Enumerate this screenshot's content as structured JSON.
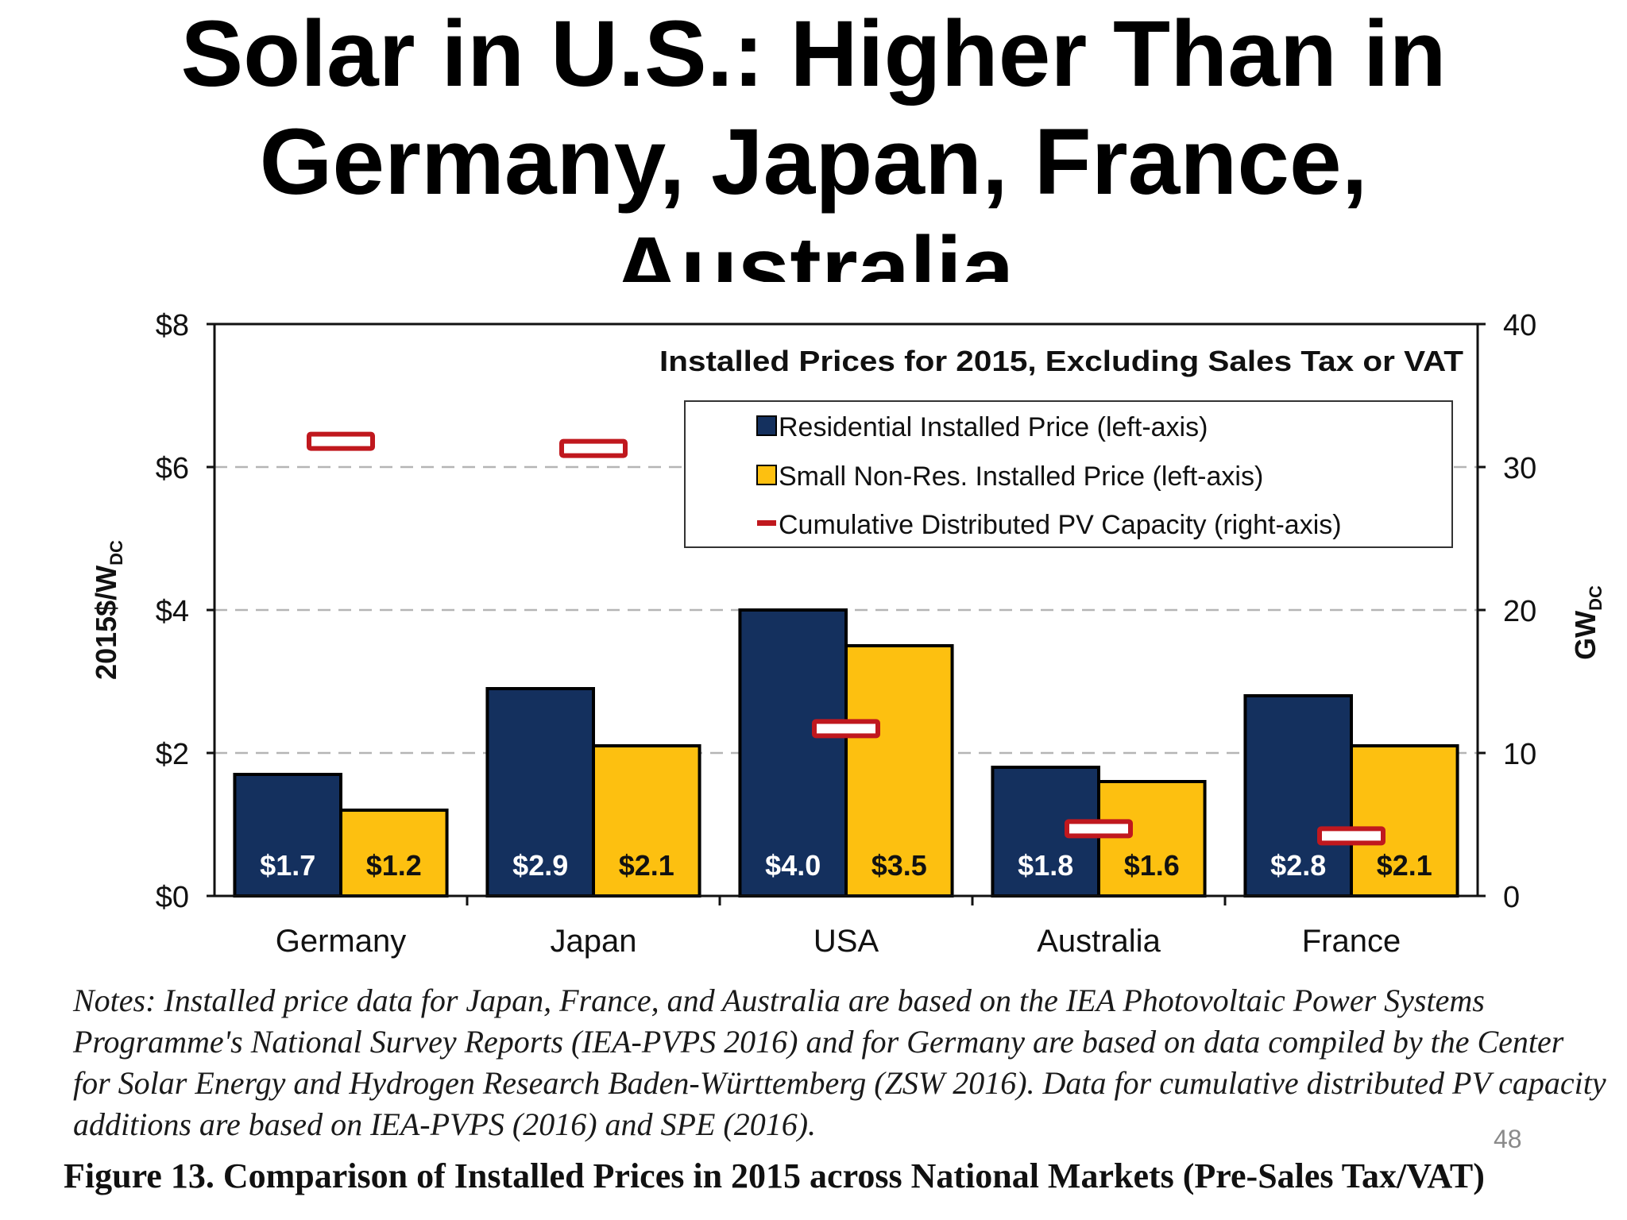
{
  "slide": {
    "title_lines": [
      "Solar in U.S.: Higher Than in",
      "Germany, Japan, France,",
      "Australia"
    ],
    "page_number": "48",
    "notes": "Notes: Installed price data for Japan, France, and Australia are based on the IEA Photovoltaic Power Systems Programme's National Survey Reports (IEA-PVPS 2016) and for Germany are based on data compiled by the Center for Solar Energy and Hydrogen Research Baden-Württemberg (ZSW 2016). Data for cumulative distributed PV capacity additions are based on IEA-PVPS (2016) and SPE (2016).",
    "caption": "Figure 13. Comparison of Installed Prices in 2015 across National Markets (Pre-Sales Tax/VAT)"
  },
  "chart_data": {
    "type": "bar",
    "title": "Installed Prices for 2015, Excluding Sales Tax or VAT",
    "categories": [
      "Germany",
      "Japan",
      "USA",
      "Australia",
      "France"
    ],
    "ylabel_left": {
      "main": "2015$/W",
      "sub": "DC"
    },
    "ylabel_right": {
      "main": "GW",
      "sub": "DC"
    },
    "ylim_left": [
      0,
      8
    ],
    "ylim_right": [
      0,
      40
    ],
    "yticks_left": [
      "$0",
      "$2",
      "$4",
      "$6",
      "$8"
    ],
    "yticks_right": [
      "0",
      "10",
      "20",
      "30",
      "40"
    ],
    "grid": "dashed horizontal",
    "legend_position": "top-right",
    "series": [
      {
        "name": "Residential Installed Price (left-axis)",
        "axis": "left",
        "kind": "bar",
        "color": "#14305e",
        "values": [
          1.7,
          2.9,
          4.0,
          1.8,
          2.8
        ],
        "labels": [
          "$1.7",
          "$2.9",
          "$4.0",
          "$1.8",
          "$2.8"
        ]
      },
      {
        "name": "Small Non-Res. Installed Price (left-axis)",
        "axis": "left",
        "kind": "bar",
        "color": "#fdc010",
        "values": [
          1.2,
          2.1,
          3.5,
          1.6,
          2.1
        ],
        "labels": [
          "$1.2",
          "$2.1",
          "$3.5",
          "$1.6",
          "$2.1"
        ]
      },
      {
        "name": "Cumulative Distributed PV Capacity (right-axis)",
        "axis": "right",
        "kind": "marker",
        "color": "#c0181e",
        "values": [
          31.8,
          31.3,
          11.7,
          4.7,
          4.2
        ]
      }
    ]
  }
}
